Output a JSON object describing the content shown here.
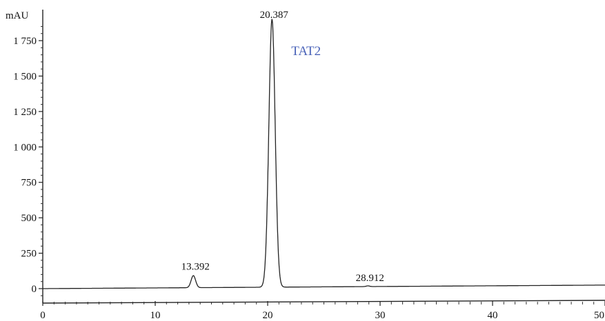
{
  "chart_data": {
    "type": "line",
    "y_unit": "mAU",
    "xlim": [
      0,
      50
    ],
    "ylim": [
      -50,
      1900
    ],
    "x_ticks": [
      0,
      10,
      20,
      30,
      40,
      50
    ],
    "x_tick_labels": [
      "0",
      "10",
      "20",
      "30",
      "40",
      "50"
    ],
    "y_ticks": [
      0,
      250,
      500,
      750,
      1000,
      1250,
      1500,
      1750
    ],
    "y_tick_labels": [
      "0",
      "250",
      "500",
      "750",
      "1 000",
      "1 250",
      "1 500",
      "1 750"
    ],
    "grid": false,
    "series": [
      {
        "name": "TAT2",
        "color": "#4a63b8",
        "baseline_start": 0,
        "baseline_end": 25,
        "peaks": [
          {
            "rt": 13.392,
            "label": "13.392",
            "height": 85,
            "width": 0.2
          },
          {
            "rt": 20.387,
            "label": "20.387",
            "height": 1890,
            "width": 0.28
          },
          {
            "rt": 28.912,
            "label": "28.912",
            "height": 5,
            "width": 0.15
          }
        ]
      }
    ]
  }
}
